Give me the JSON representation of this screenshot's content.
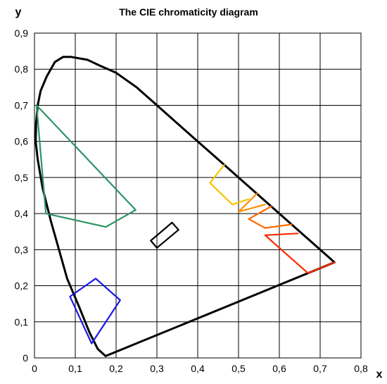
{
  "chart_data": {
    "type": "scatter",
    "title": "The CIE chromaticity diagram",
    "xlabel": "x",
    "ylabel": "y",
    "xlim": [
      0,
      0.8
    ],
    "ylim": [
      0,
      0.9
    ],
    "grid": true,
    "x_ticks": [
      "0",
      "0,1",
      "0,2",
      "0,3",
      "0,4",
      "0,5",
      "0,6",
      "0,7",
      "0,8"
    ],
    "y_ticks": [
      "0",
      "0,1",
      "0,2",
      "0,3",
      "0,4",
      "0,5",
      "0,6",
      "0,7",
      "0,8",
      "0,9"
    ],
    "series": [
      {
        "color": "#000000",
        "closed": false,
        "points": [
          [
            0.735,
            0.265
          ],
          [
            0.7,
            0.3
          ],
          [
            0.65,
            0.35
          ],
          [
            0.6,
            0.4
          ],
          [
            0.55,
            0.45
          ],
          [
            0.5,
            0.5
          ],
          [
            0.45,
            0.55
          ],
          [
            0.4,
            0.6
          ],
          [
            0.35,
            0.65
          ],
          [
            0.3,
            0.7
          ],
          [
            0.25,
            0.75
          ],
          [
            0.2,
            0.79
          ],
          [
            0.16,
            0.81
          ],
          [
            0.13,
            0.826
          ],
          [
            0.09,
            0.834
          ],
          [
            0.07,
            0.834
          ],
          [
            0.05,
            0.82
          ],
          [
            0.03,
            0.78
          ],
          [
            0.015,
            0.74
          ],
          [
            0.008,
            0.7
          ],
          [
            0.004,
            0.65
          ],
          [
            0.003,
            0.6
          ],
          [
            0.008,
            0.55
          ],
          [
            0.02,
            0.47
          ],
          [
            0.04,
            0.38
          ],
          [
            0.06,
            0.3
          ],
          [
            0.08,
            0.22
          ],
          [
            0.11,
            0.14
          ],
          [
            0.135,
            0.07
          ],
          [
            0.155,
            0.025
          ],
          [
            0.1741,
            0.005
          ],
          [
            0.735,
            0.265
          ]
        ]
      },
      {
        "color": "#2e9467",
        "closed": true,
        "points": [
          [
            0.005,
            0.7
          ],
          [
            0.248,
            0.41
          ],
          [
            0.175,
            0.363
          ],
          [
            0.028,
            0.4
          ]
        ]
      },
      {
        "color": "#1a1ae6",
        "closed": true,
        "points": [
          [
            0.087,
            0.17
          ],
          [
            0.15,
            0.22
          ],
          [
            0.21,
            0.16
          ],
          [
            0.14,
            0.04
          ]
        ]
      },
      {
        "color": "#000000",
        "closed": true,
        "points": [
          [
            0.3,
            0.305
          ],
          [
            0.353,
            0.355
          ],
          [
            0.337,
            0.375
          ],
          [
            0.285,
            0.325
          ]
        ]
      },
      {
        "color": "#f5c400",
        "closed": false,
        "points": [
          [
            0.465,
            0.535
          ],
          [
            0.43,
            0.485
          ],
          [
            0.485,
            0.425
          ],
          [
            0.525,
            0.44
          ]
        ]
      },
      {
        "color": "#ff8c00",
        "closed": false,
        "points": [
          [
            0.545,
            0.455
          ],
          [
            0.5,
            0.405
          ],
          [
            0.565,
            0.425
          ]
        ]
      },
      {
        "color": "#ff6a00",
        "closed": false,
        "points": [
          [
            0.58,
            0.42
          ],
          [
            0.525,
            0.385
          ],
          [
            0.565,
            0.36
          ],
          [
            0.63,
            0.37
          ]
        ]
      },
      {
        "color": "#ff2a00",
        "closed": false,
        "points": [
          [
            0.645,
            0.345
          ],
          [
            0.565,
            0.34
          ],
          [
            0.67,
            0.235
          ],
          [
            0.735,
            0.265
          ]
        ]
      }
    ]
  }
}
